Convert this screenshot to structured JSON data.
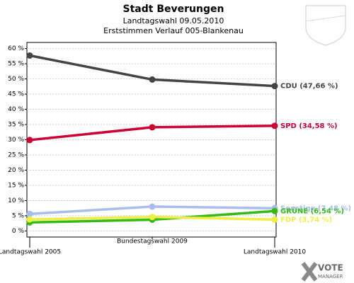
{
  "chart_data": {
    "type": "line",
    "title": "Stadt Beverungen",
    "subtitle": "Landtagswahl 09.05.2010",
    "caption": "Erststimmen Verlauf 005-Blankenau",
    "brand": [
      "VOTE",
      "MANAGER"
    ],
    "categories": [
      "Landtagswahl 2005",
      "Bundestagswahl 2009",
      "Landtagswahl 2010"
    ],
    "series": [
      {
        "name": "CDU (47,66 %)",
        "color": "#444444",
        "values": [
          57.7,
          49.8,
          47.66
        ]
      },
      {
        "name": "SPD (34,58 %)",
        "color": "#cc0033",
        "values": [
          29.9,
          34.1,
          34.58
        ]
      },
      {
        "name": "Sonstige (7,48 %)",
        "color": "#aabbee",
        "values": [
          5.6,
          8.0,
          7.48
        ]
      },
      {
        "name": "GRÜNE (6,54 %)",
        "color": "#33bb11",
        "values": [
          2.8,
          3.7,
          6.54
        ]
      },
      {
        "name": "FDP (3,74 %)",
        "color": "#eeee44",
        "values": [
          3.8,
          4.6,
          3.74
        ]
      }
    ],
    "ylim": [
      -2,
      62
    ],
    "yticks": [
      {
        "value": 0,
        "label": "0 %"
      },
      {
        "value": 5,
        "label": "5 %"
      },
      {
        "value": 10,
        "label": "10 %"
      },
      {
        "value": 15,
        "label": "15 %"
      },
      {
        "value": 20,
        "label": "20 %"
      },
      {
        "value": 25,
        "label": "25 %"
      },
      {
        "value": 30,
        "label": "30 %"
      },
      {
        "value": 35,
        "label": "35 %"
      },
      {
        "value": 40,
        "label": "40 %"
      },
      {
        "value": 45,
        "label": "45 %"
      },
      {
        "value": 50,
        "label": "50 %"
      },
      {
        "value": 55,
        "label": "55 %"
      },
      {
        "value": 60,
        "label": "60 %"
      }
    ],
    "grid": true
  }
}
